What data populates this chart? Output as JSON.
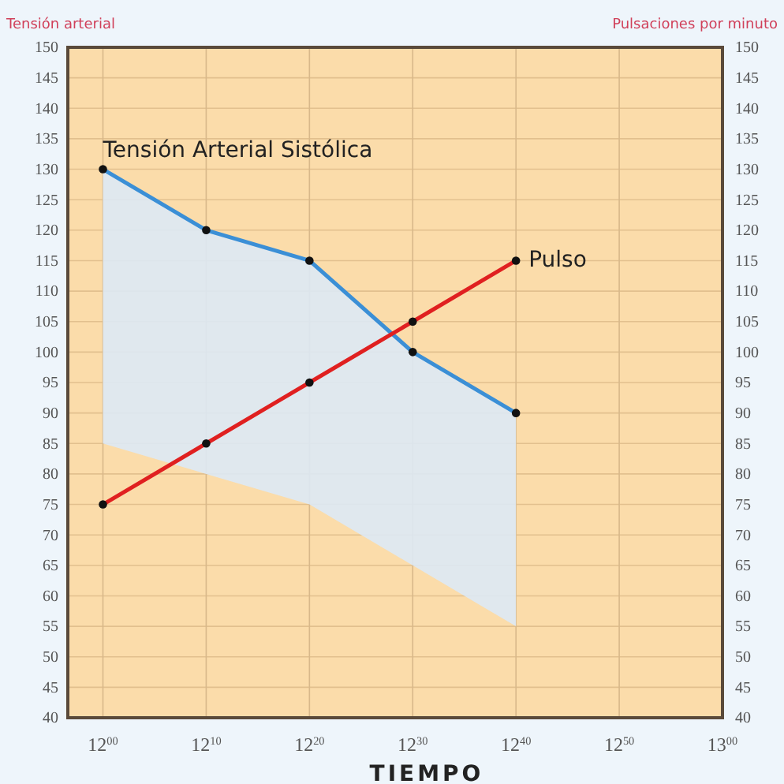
{
  "chart_data": {
    "type": "line",
    "categories": [
      "12$^{00}$",
      "12$^{10}$",
      "12$^{20}$",
      "12$^{30}$",
      "12$^{40}$",
      "12$^{50}$",
      "13$^{00}$"
    ],
    "ylim": [
      40,
      150
    ],
    "yticks": [
      40,
      45,
      50,
      55,
      60,
      65,
      70,
      75,
      80,
      85,
      90,
      95,
      100,
      105,
      110,
      115,
      120,
      125,
      130,
      135,
      140,
      145,
      150
    ],
    "y2lim": [
      40,
      150
    ],
    "y2ticks": [
      40,
      45,
      50,
      55,
      60,
      65,
      70,
      75,
      80,
      85,
      90,
      95,
      100,
      105,
      110,
      115,
      120,
      125,
      130,
      135,
      140,
      145,
      150
    ],
    "ylabel": "Tensión arterial",
    "y2label": "Pulsaciones por minuto",
    "xlabel": "TIEMPO",
    "grid": true,
    "marker": "circle",
    "series": [
      {
        "name": "Tensión Arterial Sistólica",
        "color": "#3b8fd6",
        "values": [
          130,
          120,
          115,
          100,
          90,
          null,
          null
        ],
        "lower": [
          85,
          80,
          75,
          65,
          55,
          null,
          null
        ],
        "upper": [
          130,
          120,
          115,
          100,
          90,
          null,
          null
        ]
      },
      {
        "name": "Pulso",
        "color": "#e02020",
        "values": [
          75,
          85,
          95,
          105,
          115,
          null,
          null
        ]
      }
    ]
  }
}
